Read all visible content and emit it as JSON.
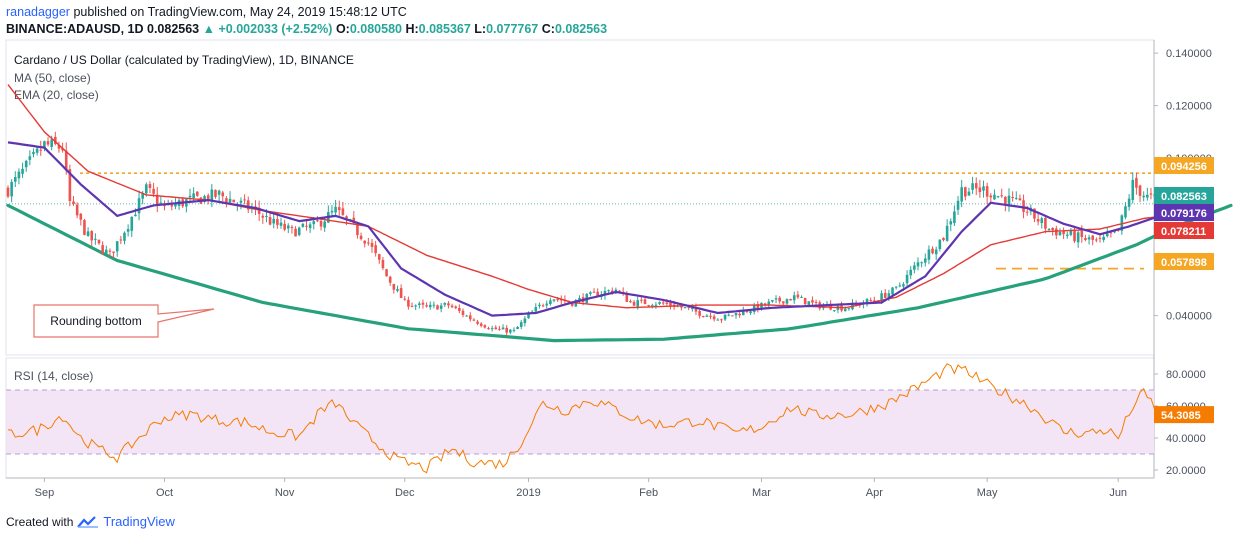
{
  "header": {
    "author": "ranadagger",
    "published_text": "published on TradingView.com, May 24, 2019 15:48:12 UTC",
    "symbol": "BINANCE:ADAUSD, 1D",
    "last": "0.082563",
    "change_arrow": "▲",
    "change": "+0.002033 (+2.52%)",
    "o_label": "O:",
    "o": "0.080580",
    "h_label": "H:",
    "h": "0.085367",
    "l_label": "L:",
    "l": "0.077767",
    "c_label": "C:",
    "c": "0.082563"
  },
  "legend": {
    "title": "Cardano / US Dollar (calculated by TradingView), 1D, BINANCE",
    "ma": "MA (50, close)",
    "ema": "EMA (20, close)"
  },
  "annotation": {
    "label": "Rounding bottom"
  },
  "rsi_legend": "RSI (14, close)",
  "footer": {
    "created_with": "Created with",
    "brand": "TradingView"
  },
  "colors": {
    "up": "#26a69a",
    "down": "#ef5350",
    "ma": "#e53935",
    "ema": "#5e35b1",
    "curve": "#26a17b",
    "level": "#f5a623",
    "rsi": "#f57c00",
    "rsi_band": "#f3e5f5"
  },
  "chart_data": {
    "type": "line",
    "title": "Cardano / US Dollar (calculated by TradingView), 1D, BINANCE",
    "price_axis": {
      "ylim": [
        0.025,
        0.145
      ],
      "ticks": [
        "0.140000",
        "0.120000",
        "0.100000",
        "0.040000"
      ],
      "badges": [
        {
          "value": 0.094256,
          "label": "0.094256",
          "color": "#f5a623"
        },
        {
          "value": 0.082563,
          "label": "0.082563",
          "color": "#26a69a"
        },
        {
          "value": 0.079176,
          "label": "0.079176",
          "color": "#5e35b1"
        },
        {
          "value": 0.078211,
          "label": "0.078211",
          "color": "#e53935"
        },
        {
          "value": 0.057898,
          "label": "0.057898",
          "color": "#f5a623"
        }
      ]
    },
    "time_axis": [
      "Sep",
      "Oct",
      "Nov",
      "Dec",
      "2019",
      "Feb",
      "Mar",
      "Apr",
      "May",
      "Jun"
    ],
    "candles_close_anchors": [
      [
        0,
        0.088
      ],
      [
        10,
        0.105
      ],
      [
        15,
        0.104
      ],
      [
        17,
        0.083
      ],
      [
        22,
        0.07
      ],
      [
        28,
        0.063
      ],
      [
        33,
        0.075
      ],
      [
        38,
        0.088
      ],
      [
        43,
        0.081
      ],
      [
        50,
        0.084
      ],
      [
        58,
        0.086
      ],
      [
        63,
        0.083
      ],
      [
        68,
        0.08
      ],
      [
        73,
        0.075
      ],
      [
        78,
        0.072
      ],
      [
        84,
        0.074
      ],
      [
        90,
        0.08
      ],
      [
        93,
        0.076
      ],
      [
        99,
        0.068
      ],
      [
        104,
        0.055
      ],
      [
        109,
        0.045
      ],
      [
        115,
        0.043
      ],
      [
        121,
        0.044
      ],
      [
        127,
        0.039
      ],
      [
        133,
        0.035
      ],
      [
        139,
        0.034
      ],
      [
        143,
        0.04
      ],
      [
        149,
        0.047
      ],
      [
        155,
        0.045
      ],
      [
        161,
        0.048
      ],
      [
        167,
        0.05
      ],
      [
        171,
        0.045
      ],
      [
        177,
        0.045
      ],
      [
        183,
        0.044
      ],
      [
        190,
        0.041
      ],
      [
        196,
        0.039
      ],
      [
        203,
        0.042
      ],
      [
        210,
        0.045
      ],
      [
        216,
        0.047
      ],
      [
        222,
        0.044
      ],
      [
        230,
        0.043
      ],
      [
        238,
        0.046
      ],
      [
        244,
        0.05
      ],
      [
        250,
        0.06
      ],
      [
        257,
        0.07
      ],
      [
        262,
        0.088
      ],
      [
        268,
        0.088
      ],
      [
        275,
        0.084
      ],
      [
        280,
        0.08
      ],
      [
        286,
        0.073
      ],
      [
        293,
        0.07
      ],
      [
        300,
        0.068
      ],
      [
        305,
        0.072
      ],
      [
        309,
        0.09
      ],
      [
        313,
        0.085
      ],
      [
        319,
        0.082563
      ]
    ],
    "series": [
      {
        "name": "MA (50, close)",
        "anchors": [
          [
            0,
            0.128
          ],
          [
            10,
            0.11
          ],
          [
            22,
            0.095
          ],
          [
            38,
            0.086
          ],
          [
            55,
            0.084
          ],
          [
            70,
            0.08
          ],
          [
            85,
            0.077
          ],
          [
            99,
            0.074
          ],
          [
            115,
            0.063
          ],
          [
            133,
            0.055
          ],
          [
            143,
            0.05
          ],
          [
            155,
            0.045
          ],
          [
            170,
            0.043
          ],
          [
            190,
            0.044
          ],
          [
            210,
            0.044
          ],
          [
            230,
            0.043
          ],
          [
            244,
            0.047
          ],
          [
            257,
            0.056
          ],
          [
            270,
            0.067
          ],
          [
            285,
            0.072
          ],
          [
            300,
            0.073
          ],
          [
            312,
            0.077
          ],
          [
            319,
            0.078211
          ]
        ]
      },
      {
        "name": "EMA (20, close)",
        "anchors": [
          [
            0,
            0.106
          ],
          [
            10,
            0.104
          ],
          [
            20,
            0.09
          ],
          [
            30,
            0.078
          ],
          [
            40,
            0.082
          ],
          [
            55,
            0.084
          ],
          [
            68,
            0.081
          ],
          [
            80,
            0.076
          ],
          [
            90,
            0.078
          ],
          [
            99,
            0.074
          ],
          [
            108,
            0.058
          ],
          [
            120,
            0.048
          ],
          [
            133,
            0.04
          ],
          [
            145,
            0.041
          ],
          [
            155,
            0.045
          ],
          [
            167,
            0.049
          ],
          [
            180,
            0.046
          ],
          [
            195,
            0.041
          ],
          [
            210,
            0.043
          ],
          [
            225,
            0.044
          ],
          [
            240,
            0.045
          ],
          [
            252,
            0.055
          ],
          [
            262,
            0.072
          ],
          [
            270,
            0.083
          ],
          [
            280,
            0.081
          ],
          [
            290,
            0.075
          ],
          [
            300,
            0.071
          ],
          [
            308,
            0.074
          ],
          [
            319,
            0.079176
          ]
        ]
      }
    ],
    "rounding_bottom_anchors": [
      [
        0,
        0.082
      ],
      [
        30,
        0.061
      ],
      [
        70,
        0.045
      ],
      [
        110,
        0.035
      ],
      [
        150,
        0.0305
      ],
      [
        180,
        0.031
      ],
      [
        215,
        0.035
      ],
      [
        250,
        0.043
      ],
      [
        285,
        0.054
      ],
      [
        310,
        0.067
      ],
      [
        319,
        0.073
      ],
      [
        336,
        0.082
      ]
    ],
    "resistance_level": 0.094256,
    "support_level": 0.057898,
    "rsi": {
      "name": "RSI (14, close)",
      "ylim": [
        15,
        90
      ],
      "ticks": [
        "80.0000",
        "60.0000",
        "40.0000",
        "20.0000"
      ],
      "bands": [
        70,
        30
      ],
      "last_label": "54.3085",
      "anchors": [
        [
          0,
          42
        ],
        [
          8,
          45
        ],
        [
          15,
          54
        ],
        [
          20,
          40
        ],
        [
          25,
          33
        ],
        [
          30,
          28
        ],
        [
          35,
          38
        ],
        [
          42,
          52
        ],
        [
          50,
          55
        ],
        [
          58,
          51
        ],
        [
          65,
          50
        ],
        [
          72,
          44
        ],
        [
          80,
          41
        ],
        [
          86,
          57
        ],
        [
          90,
          62
        ],
        [
          95,
          49
        ],
        [
          100,
          39
        ],
        [
          107,
          26
        ],
        [
          115,
          21
        ],
        [
          122,
          33
        ],
        [
          128,
          25
        ],
        [
          136,
          24
        ],
        [
          140,
          34
        ],
        [
          147,
          62
        ],
        [
          153,
          57
        ],
        [
          160,
          64
        ],
        [
          167,
          58
        ],
        [
          172,
          52
        ],
        [
          180,
          48
        ],
        [
          190,
          51
        ],
        [
          200,
          43
        ],
        [
          207,
          47
        ],
        [
          215,
          59
        ],
        [
          222,
          54
        ],
        [
          232,
          55
        ],
        [
          242,
          62
        ],
        [
          250,
          72
        ],
        [
          258,
          83
        ],
        [
          263,
          82
        ],
        [
          270,
          72
        ],
        [
          280,
          61
        ],
        [
          290,
          44
        ],
        [
          296,
          43
        ],
        [
          302,
          45
        ],
        [
          305,
          40
        ],
        [
          309,
          60
        ],
        [
          312,
          68
        ],
        [
          316,
          57
        ],
        [
          319,
          54.3085
        ]
      ]
    }
  }
}
